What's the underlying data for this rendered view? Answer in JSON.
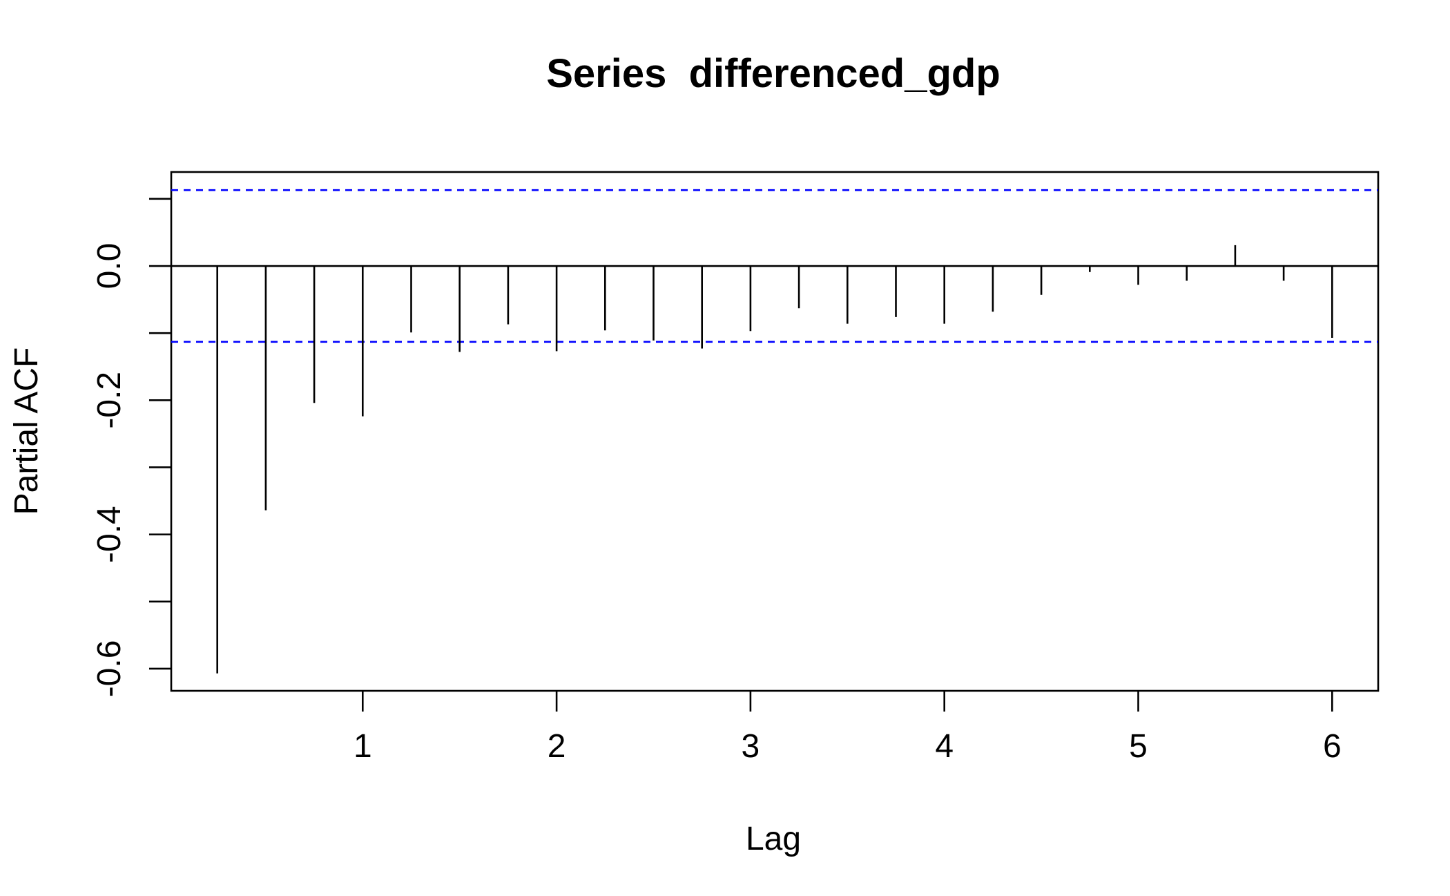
{
  "chart_data": {
    "type": "bar",
    "subtype": "pacf-spikes",
    "title": "Series  differenced_gdp",
    "xlabel": "Lag",
    "ylabel": "Partial ACF",
    "xlim": [
      0.0125,
      6.2375
    ],
    "ylim": [
      -0.633,
      0.14
    ],
    "x_ticks": [
      1,
      2,
      3,
      4,
      5,
      6
    ],
    "x_tick_labels": [
      "1",
      "2",
      "3",
      "4",
      "5",
      "6"
    ],
    "y_ticks": [
      0.1,
      0.0,
      -0.1,
      -0.2,
      -0.3,
      -0.4,
      -0.5,
      -0.6
    ],
    "y_tick_labels": [
      {
        "value": 0.0,
        "label": "0.0"
      },
      {
        "value": -0.2,
        "label": "-0.2"
      },
      {
        "value": -0.4,
        "label": "-0.4"
      },
      {
        "value": -0.6,
        "label": "-0.6"
      }
    ],
    "confidence_bound": 0.113,
    "grid": false,
    "colors": {
      "spike": "#000000",
      "confidence": "#0000ff",
      "frame": "#000000"
    },
    "lags": [
      0.25,
      0.5,
      0.75,
      1.0,
      1.25,
      1.5,
      1.75,
      2.0,
      2.25,
      2.5,
      2.75,
      3.0,
      3.25,
      3.5,
      3.75,
      4.0,
      4.25,
      4.5,
      4.75,
      5.0,
      5.25,
      5.5,
      5.75,
      6.0
    ],
    "values": [
      -0.607,
      -0.364,
      -0.204,
      -0.224,
      -0.099,
      -0.128,
      -0.087,
      -0.127,
      -0.096,
      -0.111,
      -0.123,
      -0.097,
      -0.063,
      -0.086,
      -0.076,
      -0.086,
      -0.068,
      -0.043,
      -0.009,
      -0.028,
      -0.022,
      0.031,
      -0.022,
      -0.107
    ]
  }
}
